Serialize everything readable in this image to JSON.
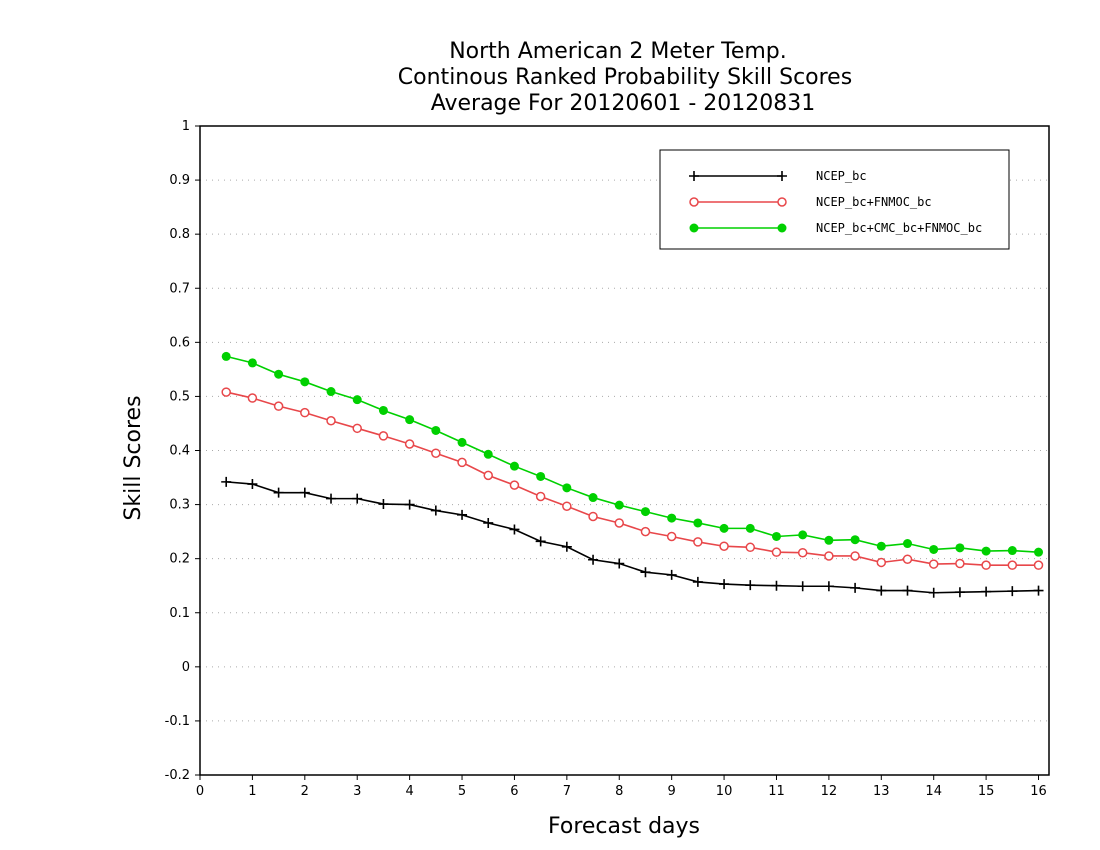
{
  "chart_data": {
    "type": "line",
    "title_lines": [
      "North American 2 Meter Temp.",
      "Continous Ranked Probability Skill Scores",
      "Average For 20120601 - 20120831"
    ],
    "xlabel": "Forecast days",
    "ylabel": "Skill Scores",
    "xlim": [
      0,
      16.2
    ],
    "ylim": [
      -0.2,
      1
    ],
    "x_ticks": [
      "0",
      "1",
      "2",
      "3",
      "4",
      "5",
      "6",
      "7",
      "8",
      "9",
      "10",
      "11",
      "12",
      "13",
      "14",
      "15",
      "16"
    ],
    "y_ticks": [
      "-0.2",
      "-0.1",
      "0",
      "0.1",
      "0.2",
      "0.3",
      "0.4",
      "0.5",
      "0.6",
      "0.7",
      "0.8",
      "0.9",
      "1"
    ],
    "grid": "horizontal-dotted",
    "legend_position": "top-right",
    "x": [
      0.5,
      1,
      1.5,
      2,
      2.5,
      3,
      3.5,
      4,
      4.5,
      5,
      5.5,
      6,
      6.5,
      7,
      7.5,
      8,
      8.5,
      9,
      9.5,
      10,
      10.5,
      11,
      11.5,
      12,
      12.5,
      13,
      13.5,
      14,
      14.5,
      15,
      15.5,
      16
    ],
    "series": [
      {
        "name": "NCEP_bc",
        "color": "#000000",
        "marker": "plus",
        "values": [
          0.342,
          0.338,
          0.322,
          0.322,
          0.311,
          0.311,
          0.301,
          0.3,
          0.289,
          0.281,
          0.266,
          0.254,
          0.232,
          0.222,
          0.198,
          0.191,
          0.175,
          0.17,
          0.157,
          0.153,
          0.151,
          0.15,
          0.149,
          0.149,
          0.146,
          0.141,
          0.141,
          0.137,
          0.138,
          0.139,
          0.14,
          0.141
        ]
      },
      {
        "name": "NCEP_bc+FNMOC_bc",
        "color": "#e8474a",
        "marker": "open-circle",
        "values": [
          0.508,
          0.497,
          0.482,
          0.47,
          0.455,
          0.441,
          0.427,
          0.412,
          0.395,
          0.378,
          0.354,
          0.336,
          0.315,
          0.297,
          0.278,
          0.266,
          0.25,
          0.241,
          0.231,
          0.223,
          0.221,
          0.212,
          0.211,
          0.205,
          0.205,
          0.193,
          0.199,
          0.19,
          0.191,
          0.188,
          0.188,
          0.188
        ]
      },
      {
        "name": "NCEP_bc+CMC_bc+FNMOC_bc",
        "color": "#00d000",
        "marker": "filled-circle",
        "values": [
          0.574,
          0.562,
          0.541,
          0.527,
          0.509,
          0.494,
          0.474,
          0.457,
          0.437,
          0.415,
          0.393,
          0.371,
          0.352,
          0.331,
          0.313,
          0.299,
          0.287,
          0.275,
          0.266,
          0.256,
          0.256,
          0.241,
          0.244,
          0.234,
          0.235,
          0.223,
          0.228,
          0.217,
          0.22,
          0.214,
          0.215,
          0.212
        ]
      }
    ]
  }
}
